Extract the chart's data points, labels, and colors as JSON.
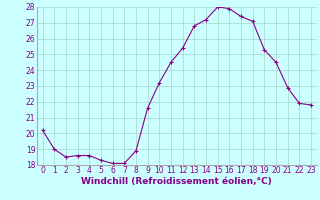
{
  "x": [
    0,
    1,
    2,
    3,
    4,
    5,
    6,
    7,
    8,
    9,
    10,
    11,
    12,
    13,
    14,
    15,
    16,
    17,
    18,
    19,
    20,
    21,
    22,
    23
  ],
  "y": [
    20.2,
    19.0,
    18.5,
    18.6,
    18.6,
    18.3,
    18.1,
    18.1,
    18.9,
    21.6,
    23.2,
    24.5,
    25.4,
    26.8,
    27.2,
    28.0,
    27.9,
    27.4,
    27.1,
    25.3,
    24.5,
    22.9,
    21.9,
    21.8
  ],
  "line_color": "#880088",
  "marker": "+",
  "marker_size": 3,
  "bg_color": "#ccffff",
  "grid_color": "#aaddcc",
  "xlabel": "Windchill (Refroidissement éolien,°C)",
  "ylim": [
    18,
    28
  ],
  "yticks": [
    18,
    19,
    20,
    21,
    22,
    23,
    24,
    25,
    26,
    27,
    28
  ],
  "xticks": [
    0,
    1,
    2,
    3,
    4,
    5,
    6,
    7,
    8,
    9,
    10,
    11,
    12,
    13,
    14,
    15,
    16,
    17,
    18,
    19,
    20,
    21,
    22,
    23
  ],
  "xlim": [
    -0.5,
    23.5
  ],
  "tick_fontsize": 5.5,
  "xlabel_fontsize": 6.5,
  "xlabel_fontweight": "bold"
}
